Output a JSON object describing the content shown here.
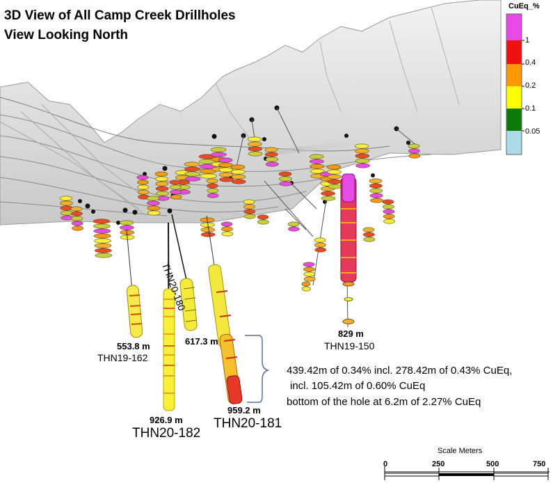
{
  "title": {
    "line1": "3D View of All Camp Creek Drillholes",
    "line2": "View Looking North"
  },
  "legend": {
    "title": "CuEq_%",
    "bins": [
      {
        "color": "#e64be6",
        "label": "1"
      },
      {
        "color": "#ee1111",
        "label": "0.4"
      },
      {
        "color": "#ff9900",
        "label": "0.2"
      },
      {
        "color": "#ffff00",
        "label": "0.1"
      },
      {
        "color": "#0a7a0a",
        "label": "0.05"
      },
      {
        "color": "#add8e6",
        "label": ""
      }
    ]
  },
  "drillholes": {
    "thn19_162": {
      "depth": "553.8 m",
      "name": "THN19-162"
    },
    "thn20_182": {
      "depth": "926.9 m",
      "name": "THN20-182"
    },
    "thn20_180": {
      "depth": "617.3 m",
      "name": "THN20-180"
    },
    "thn20_181": {
      "depth": "959.2 m",
      "name": "THN20-181"
    },
    "thn19_150": {
      "depth": "829 m",
      "name": "THN19-150"
    }
  },
  "annotation": {
    "line1": "439.42m of 0.34% incl. 278.42m of 0.43% CuEq,",
    "line2": "incl. 105.42m of 0.60% CuEq",
    "line3": "bottom of the hole at 6.2m of 2.27% CuEq"
  },
  "scale": {
    "title": "Scale Meters",
    "ticks": [
      "0",
      "250",
      "500",
      "750"
    ]
  }
}
